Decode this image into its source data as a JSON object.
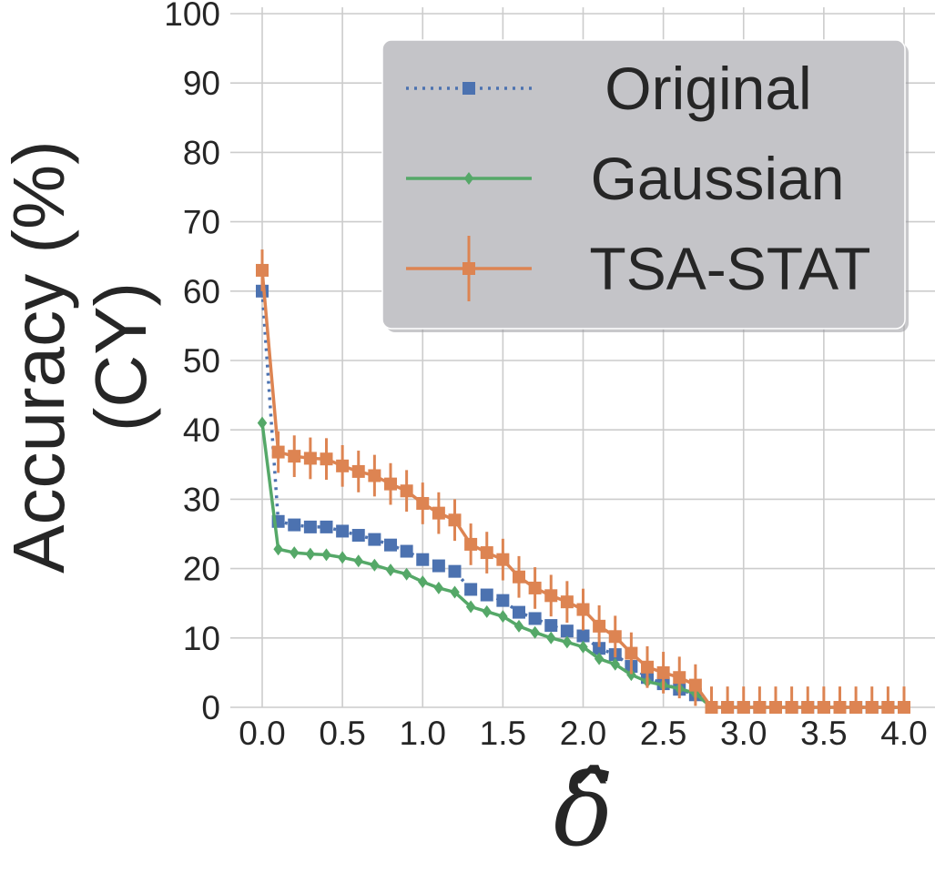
{
  "chart_data": {
    "type": "line",
    "title": "",
    "xlabel": "δ̂",
    "ylabel_lines": [
      "Accuracy (%)",
      "(CY)"
    ],
    "xlim": [
      0.0,
      4.0
    ],
    "ylim": [
      0,
      100
    ],
    "grid": true,
    "legend_position": "top-right",
    "xticks": [
      0.0,
      0.5,
      1.0,
      1.5,
      2.0,
      2.5,
      3.0,
      3.5,
      4.0
    ],
    "xtick_labels": [
      "0.0",
      "0.5",
      "1.0",
      "1.5",
      "2.0",
      "2.5",
      "3.0",
      "3.5",
      "4.0"
    ],
    "yticks": [
      0,
      10,
      20,
      30,
      40,
      50,
      60,
      70,
      80,
      90,
      100
    ],
    "ytick_labels": [
      "0",
      "10",
      "20",
      "30",
      "40",
      "50",
      "60",
      "70",
      "80",
      "90",
      "100"
    ],
    "x": [
      0.0,
      0.1,
      0.2,
      0.3,
      0.4,
      0.5,
      0.6,
      0.7,
      0.8,
      0.9,
      1.0,
      1.1,
      1.2,
      1.3,
      1.4,
      1.5,
      1.6,
      1.7,
      1.8,
      1.9,
      2.0,
      2.1,
      2.2,
      2.3,
      2.4,
      2.5,
      2.6,
      2.7,
      2.8,
      2.9,
      3.0,
      3.1,
      3.2,
      3.3,
      3.4,
      3.5,
      3.6,
      3.7,
      3.8,
      3.9,
      4.0
    ],
    "series": [
      {
        "name": "Original",
        "color": "#4c72b0",
        "marker": "square",
        "linestyle": "dotted",
        "values": [
          60,
          26.8,
          26.3,
          26.0,
          26.0,
          25.4,
          24.8,
          24.2,
          23.4,
          22.5,
          21.3,
          20.4,
          19.6,
          17.0,
          16.2,
          15.4,
          13.7,
          12.8,
          11.8,
          11.0,
          10.3,
          8.5,
          7.6,
          5.9,
          4.3,
          3.4,
          2.6,
          1.8,
          0,
          0,
          0,
          0,
          0,
          0,
          0,
          0,
          0,
          0,
          0,
          0,
          0
        ]
      },
      {
        "name": "Gaussian",
        "color": "#55a868",
        "marker": "diamond",
        "linestyle": "solid",
        "values": [
          41,
          22.8,
          22.3,
          22.1,
          22.0,
          21.6,
          21.1,
          20.5,
          19.8,
          19.2,
          18.1,
          17.2,
          16.6,
          14.5,
          13.8,
          13.1,
          11.7,
          10.8,
          10.0,
          9.4,
          8.7,
          7.0,
          6.2,
          4.7,
          3.7,
          3.2,
          2.7,
          2.0,
          0,
          0,
          0,
          0,
          0,
          0,
          0,
          0,
          0,
          0,
          0,
          0,
          0
        ]
      },
      {
        "name": "TSA-STAT",
        "color": "#dd8452",
        "marker": "square",
        "linestyle": "solid",
        "values": [
          63,
          36.8,
          36.2,
          35.9,
          35.8,
          34.8,
          34.0,
          33.4,
          32.2,
          31.2,
          29.4,
          28.0,
          27.0,
          23.5,
          22.3,
          21.3,
          18.8,
          17.2,
          16.1,
          15.2,
          14.1,
          11.7,
          10.2,
          7.8,
          5.8,
          5.0,
          4.3,
          3.2,
          0,
          0,
          0,
          0,
          0,
          0,
          0,
          0,
          0,
          0,
          0,
          0,
          0
        ],
        "error": [
          3,
          3,
          3,
          3,
          3,
          3,
          3,
          3,
          3,
          3,
          3,
          3,
          3,
          3,
          3,
          3,
          3,
          3,
          3,
          3,
          3,
          3,
          3,
          3,
          3,
          3,
          3,
          3,
          3,
          3,
          3,
          3,
          3,
          3,
          3,
          3,
          3,
          3,
          3,
          3,
          3
        ]
      }
    ]
  }
}
